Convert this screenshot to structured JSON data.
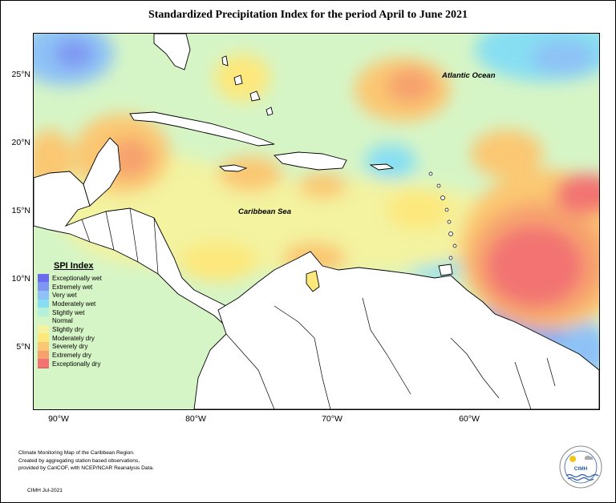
{
  "title": "Standardized Precipitation Index for the period April to June 2021",
  "axes": {
    "y_ticks": [
      "25°N",
      "20°N",
      "15°N",
      "10°N",
      "5°N"
    ],
    "x_ticks": [
      "90°W",
      "80°W",
      "70°W",
      "60°W"
    ]
  },
  "labels": {
    "atlantic": "Atlantic Ocean",
    "caribbean": "Caribbean Sea"
  },
  "legend": {
    "title": "SPI Index",
    "items": [
      {
        "label": "Exceptionally wet",
        "color": "#6b6bef"
      },
      {
        "label": "Extremely wet",
        "color": "#7f97f3"
      },
      {
        "label": "Very wet",
        "color": "#8ec2f6"
      },
      {
        "label": "Moderately wet",
        "color": "#87def2"
      },
      {
        "label": "Slightly wet",
        "color": "#b4f0dc"
      },
      {
        "label": "Normal",
        "color": "#d6f5c6"
      },
      {
        "label": "Slightly dry",
        "color": "#f3f3a0"
      },
      {
        "label": "Moderately dry",
        "color": "#fde87c"
      },
      {
        "label": "Severely dry",
        "color": "#fbc772"
      },
      {
        "label": "Extremely dry",
        "color": "#f7a26e"
      },
      {
        "label": "Exceptionally dry",
        "color": "#f27372"
      }
    ]
  },
  "footnote": {
    "line1": "Climate Monitoring Map of the Caribbean Region.",
    "line2": "Created by aggregating station based observations,",
    "line3": "provided by CariCOF, with NCEP/NCAR Reanalysis Data.",
    "date": "CIMH Jul-2021"
  },
  "logo": {
    "text": "CIMH"
  }
}
